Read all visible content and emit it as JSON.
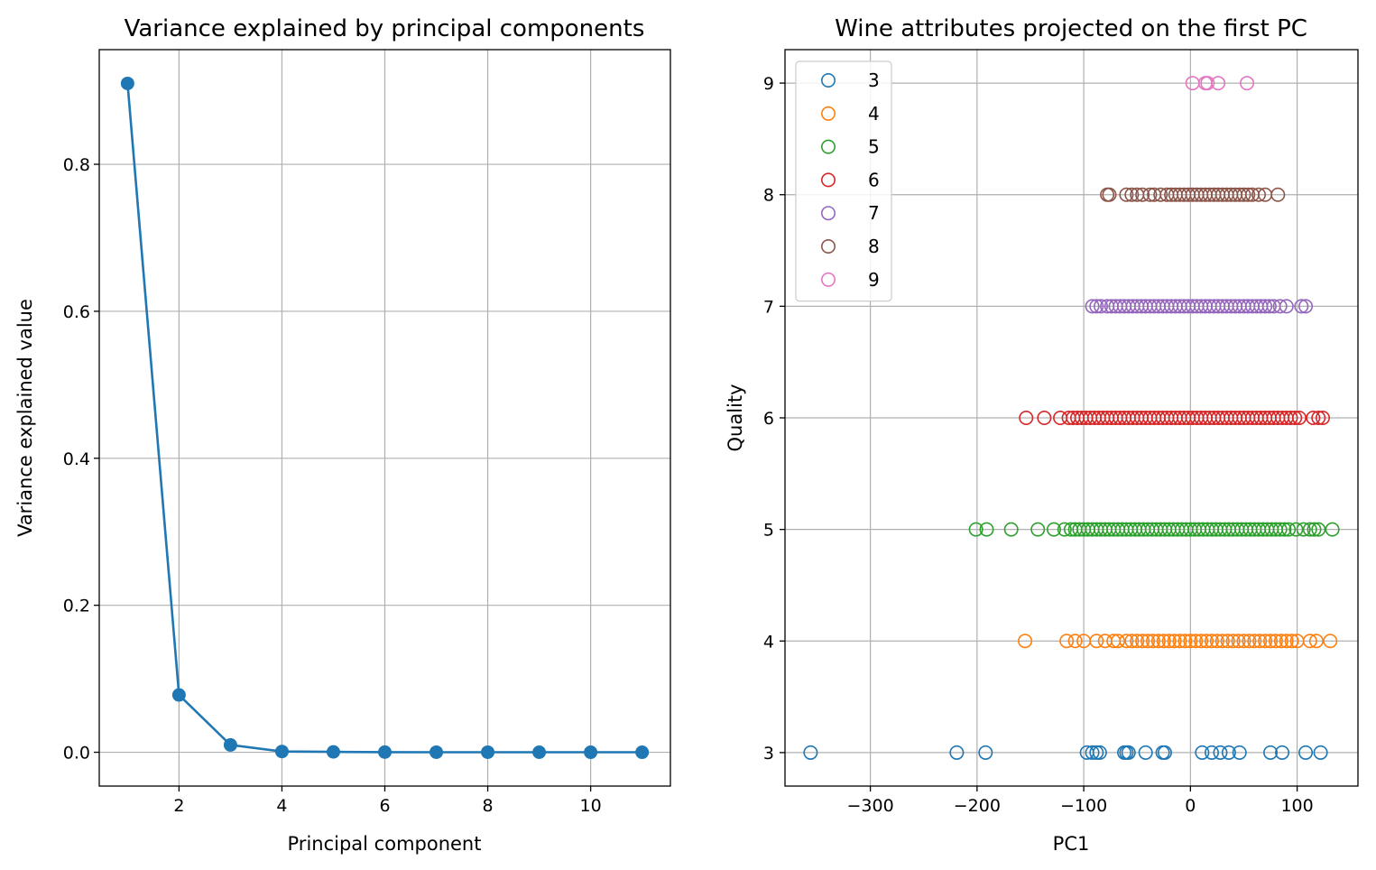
{
  "chart_data": [
    {
      "type": "line",
      "title": "Variance explained by principal components",
      "xlabel": "Principal component",
      "ylabel": "Variance explained value",
      "xlim": [
        0.45,
        11.55
      ],
      "ylim": [
        -0.046,
        0.956
      ],
      "xticks": [
        2,
        4,
        6,
        8,
        10
      ],
      "yticks": [
        0.0,
        0.2,
        0.4,
        0.6,
        0.8
      ],
      "ytick_labels": [
        "0.0",
        "0.2",
        "0.4",
        "0.6",
        "0.8"
      ],
      "grid": true,
      "color": "#1f77b4",
      "marker": "filled-circle",
      "x": [
        1,
        2,
        3,
        4,
        5,
        6,
        7,
        8,
        9,
        10,
        11
      ],
      "y": [
        0.91,
        0.078,
        0.01,
        0.001,
        0.0005,
        0.0002,
        0.0001,
        0.0001,
        5e-05,
        2e-05,
        1e-05
      ]
    },
    {
      "type": "scatter",
      "title": "Wine attributes projected on the first PC",
      "xlabel": "PC1",
      "ylabel": "Quality",
      "xlim": [
        -380,
        157
      ],
      "ylim": [
        2.7,
        9.3
      ],
      "xticks": [
        -300,
        -200,
        -100,
        0,
        100
      ],
      "xtick_labels": [
        "−300",
        "−200",
        "−100",
        "0",
        "100"
      ],
      "yticks": [
        3,
        4,
        5,
        6,
        7,
        8,
        9
      ],
      "grid": true,
      "marker": "open-circle",
      "legend": "upper-left",
      "series": [
        {
          "name": "3",
          "quality": 3,
          "color": "#1f77b4",
          "x": [
            -356,
            -219,
            -192,
            -97,
            -92,
            -88,
            -85,
            -62,
            -60,
            -58,
            -42,
            -26,
            -24,
            11,
            20,
            28,
            36,
            46,
            75,
            86,
            108,
            122
          ]
        },
        {
          "name": "4",
          "quality": 4,
          "color": "#ff7f0e",
          "x": [
            -155,
            -116,
            -108,
            -100,
            -88,
            -80,
            -72,
            -68,
            -60,
            -55,
            -50,
            -45,
            -40,
            -35,
            -30,
            -25,
            -20,
            -15,
            -10,
            -5,
            0,
            5,
            10,
            15,
            20,
            25,
            30,
            35,
            40,
            45,
            50,
            55,
            60,
            65,
            70,
            75,
            80,
            85,
            90,
            95,
            100,
            112,
            118,
            131
          ]
        },
        {
          "name": "5",
          "quality": 5,
          "color": "#2ca02c",
          "x": [
            -201,
            -191,
            -168,
            -143,
            -128,
            -118,
            -112,
            -108,
            -104,
            -100,
            -96,
            -92,
            -88,
            -84,
            -80,
            -76,
            -72,
            -68,
            -64,
            -60,
            -56,
            -52,
            -48,
            -44,
            -40,
            -36,
            -32,
            -28,
            -24,
            -20,
            -16,
            -12,
            -8,
            -4,
            0,
            4,
            8,
            12,
            16,
            20,
            24,
            28,
            32,
            36,
            40,
            44,
            48,
            52,
            56,
            60,
            64,
            68,
            72,
            76,
            80,
            84,
            88,
            92,
            99,
            106,
            112,
            116,
            120,
            133
          ]
        },
        {
          "name": "6",
          "quality": 6,
          "color": "#d62728",
          "x": [
            -154,
            -137,
            -122,
            -114,
            -110,
            -106,
            -102,
            -98,
            -94,
            -90,
            -86,
            -82,
            -78,
            -74,
            -70,
            -66,
            -62,
            -58,
            -54,
            -50,
            -46,
            -42,
            -38,
            -34,
            -30,
            -26,
            -22,
            -18,
            -14,
            -10,
            -6,
            -2,
            2,
            6,
            10,
            14,
            18,
            22,
            26,
            30,
            34,
            38,
            42,
            46,
            50,
            54,
            58,
            62,
            66,
            70,
            74,
            78,
            82,
            86,
            90,
            94,
            98,
            102,
            115,
            120,
            124
          ]
        },
        {
          "name": "7",
          "quality": 7,
          "color": "#9467bd",
          "x": [
            -92,
            -88,
            -84,
            -78,
            -74,
            -70,
            -66,
            -62,
            -58,
            -54,
            -50,
            -46,
            -42,
            -38,
            -34,
            -30,
            -26,
            -22,
            -18,
            -14,
            -10,
            -6,
            -2,
            2,
            6,
            10,
            14,
            18,
            22,
            26,
            30,
            34,
            38,
            42,
            46,
            50,
            54,
            58,
            62,
            66,
            70,
            74,
            78,
            84,
            90,
            104,
            108
          ]
        },
        {
          "name": "8",
          "quality": 8,
          "color": "#8c564b",
          "x": [
            -78,
            -76,
            -60,
            -55,
            -50,
            -45,
            -38,
            -34,
            -28,
            -22,
            -18,
            -14,
            -10,
            -6,
            -2,
            2,
            6,
            10,
            14,
            18,
            22,
            26,
            30,
            34,
            38,
            42,
            46,
            50,
            54,
            58,
            64,
            70,
            82
          ]
        },
        {
          "name": "9",
          "quality": 9,
          "color": "#e377c2",
          "x": [
            2,
            14,
            16,
            26,
            53
          ]
        }
      ]
    }
  ]
}
